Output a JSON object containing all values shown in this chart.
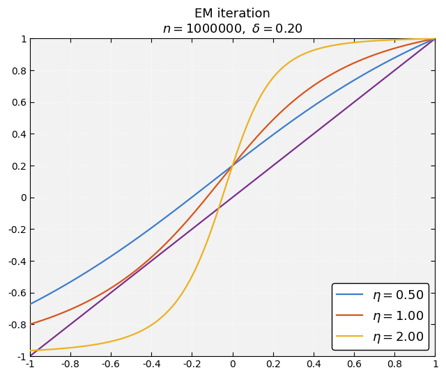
{
  "title_line1": "EM iteration",
  "title_line2": "$n = 1000000, \\delta = 0.20$",
  "n": 1000000,
  "delta": 0.2,
  "eta_values": [
    0.5,
    1.0,
    2.0
  ],
  "line_colors": [
    "#3b7dc9",
    "#d95319",
    "#edb120"
  ],
  "identity_color": "#7b2d8b",
  "xlim": [
    -1,
    1
  ],
  "ylim": [
    -1,
    1
  ],
  "xticks": [
    -1,
    -0.8,
    -0.6,
    -0.4,
    -0.2,
    0,
    0.2,
    0.4,
    0.6,
    0.8,
    1
  ],
  "yticks": [
    -1,
    -0.8,
    -0.6,
    -0.4,
    -0.2,
    0,
    0.2,
    0.4,
    0.6,
    0.8,
    1
  ],
  "linewidth": 1.6,
  "background_color": "#f2f2f2",
  "grid_color": "#ffffff",
  "legend_labels": [
    "$\\eta = 0.50$",
    "$\\eta = 1.00$",
    "$\\eta = 2.00$"
  ],
  "legend_loc": "lower right",
  "figsize": [
    6.4,
    5.42
  ],
  "dpi": 100
}
